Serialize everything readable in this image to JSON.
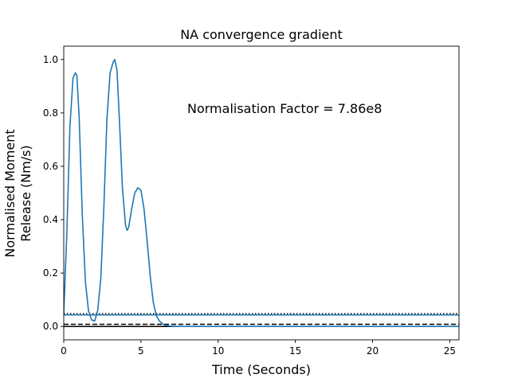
{
  "chart_data": {
    "type": "line",
    "title": "NA convergence gradient",
    "xlabel": "Time (Seconds)",
    "ylabel_lines": [
      "Normalised Moment",
      "Release (Nm/s)"
    ],
    "annotation": "Normalisation Factor = 7.86e8",
    "xlim": [
      0,
      25.6
    ],
    "ylim": [
      -0.05,
      1.05
    ],
    "xticks": [
      0,
      5,
      10,
      15,
      20,
      25
    ],
    "yticks": [
      0.0,
      0.2,
      0.4,
      0.6,
      0.8,
      1.0
    ],
    "xtick_labels": [
      "0",
      "5",
      "10",
      "15",
      "20",
      "25"
    ],
    "ytick_labels": [
      "0.0",
      "0.2",
      "0.4",
      "0.6",
      "0.8",
      "1.0"
    ],
    "grid": false,
    "series": [
      {
        "color": "#1f77b4",
        "x": [
          0,
          0.2,
          0.4,
          0.6,
          0.75,
          0.85,
          1.0,
          1.2,
          1.4,
          1.6,
          1.8,
          2.0,
          2.2,
          2.4,
          2.6,
          2.8,
          3.0,
          3.2,
          3.3,
          3.45,
          3.6,
          3.8,
          4.0,
          4.1,
          4.2,
          4.4,
          4.6,
          4.8,
          5.0,
          5.2,
          5.4,
          5.6,
          5.8,
          6.0,
          6.2,
          6.5,
          6.8,
          7.0,
          7.5,
          8,
          10,
          15,
          20,
          25.6
        ],
        "y": [
          0.05,
          0.35,
          0.75,
          0.93,
          0.95,
          0.94,
          0.78,
          0.42,
          0.17,
          0.06,
          0.025,
          0.02,
          0.06,
          0.18,
          0.45,
          0.78,
          0.95,
          0.99,
          1.0,
          0.96,
          0.78,
          0.52,
          0.38,
          0.36,
          0.37,
          0.44,
          0.5,
          0.52,
          0.51,
          0.44,
          0.32,
          0.19,
          0.09,
          0.04,
          0.02,
          0.006,
          0.002,
          0.001,
          0.0,
          0.0,
          0.0,
          0.0,
          0.0,
          0.0
        ]
      }
    ],
    "hlines": [
      {
        "y": 0.048,
        "color": "#000000",
        "style": "dotted"
      },
      {
        "y": 0.043,
        "color": "#1f77b4",
        "style": "solid"
      },
      {
        "y": 0.008,
        "color": "#000000",
        "style": "dashed"
      },
      {
        "y": 0.0,
        "color": "#000000",
        "style": "solid"
      }
    ]
  }
}
